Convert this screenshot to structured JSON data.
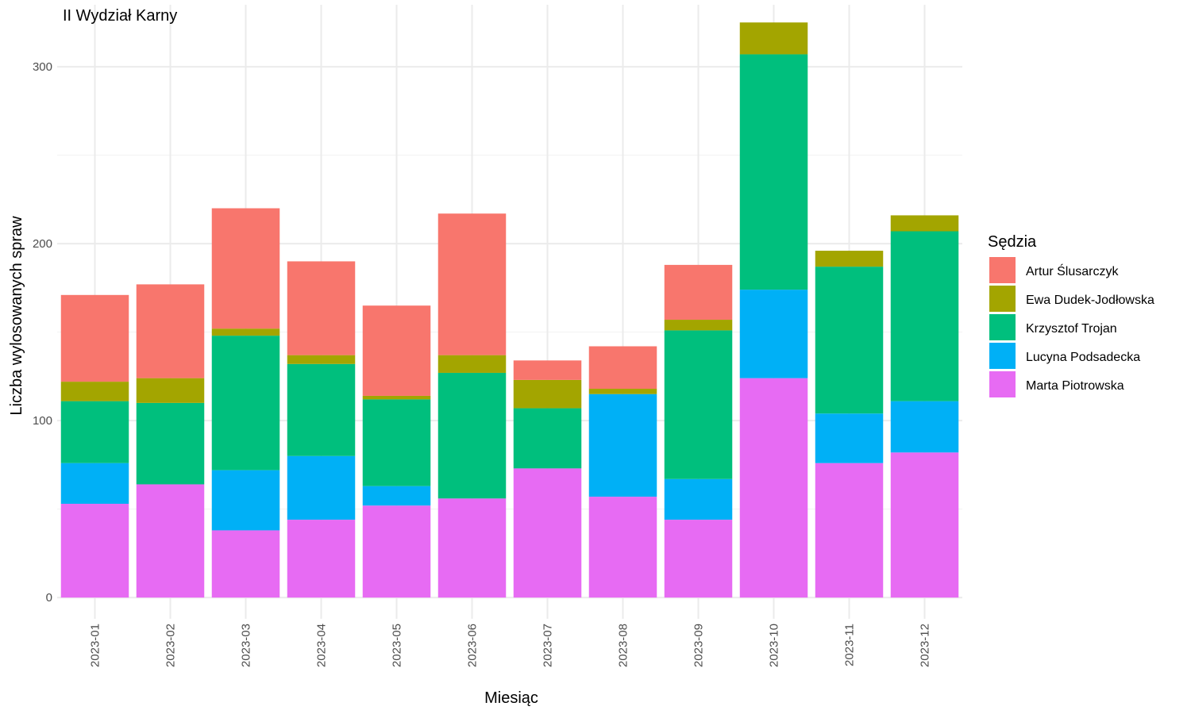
{
  "chart_data": {
    "type": "bar",
    "stacked": true,
    "title": "II Wydział Karny",
    "xlabel": "Miesiąc",
    "ylabel": "Liczba wylosowanych spraw",
    "categories": [
      "2023-01",
      "2023-02",
      "2023-03",
      "2023-04",
      "2023-05",
      "2023-06",
      "2023-07",
      "2023-08",
      "2023-09",
      "2023-10",
      "2023-11",
      "2023-12"
    ],
    "y_ticks": [
      0,
      100,
      200,
      300
    ],
    "ylim": [
      -12,
      335
    ],
    "grid": true,
    "legend": {
      "title": "Sędzia",
      "position": "right"
    },
    "series": [
      {
        "name": "Marta Piotrowska",
        "color": "#E76BF3",
        "values": [
          53,
          64,
          38,
          44,
          52,
          56,
          73,
          57,
          44,
          124,
          76,
          82
        ]
      },
      {
        "name": "Lucyna Podsadecka",
        "color": "#00B0F6",
        "values": [
          23,
          0,
          34,
          36,
          11,
          0,
          0,
          58,
          23,
          50,
          28,
          29
        ]
      },
      {
        "name": "Krzysztof Trojan",
        "color": "#00BF7D",
        "values": [
          35,
          46,
          76,
          52,
          49,
          71,
          34,
          0,
          84,
          133,
          83,
          96
        ]
      },
      {
        "name": "Ewa Dudek-Jodłowska",
        "color": "#A3A500",
        "values": [
          11,
          14,
          4,
          5,
          2,
          10,
          16,
          3,
          6,
          18,
          9,
          9
        ]
      },
      {
        "name": "Artur Ślusarczyk",
        "color": "#F8766D",
        "values": [
          49,
          53,
          68,
          53,
          51,
          80,
          11,
          24,
          31,
          0,
          0,
          0
        ]
      }
    ],
    "legend_order": [
      "Artur Ślusarczyk",
      "Ewa Dudek-Jodłowska",
      "Krzysztof Trojan",
      "Lucyna Podsadecka",
      "Marta Piotrowska"
    ]
  }
}
